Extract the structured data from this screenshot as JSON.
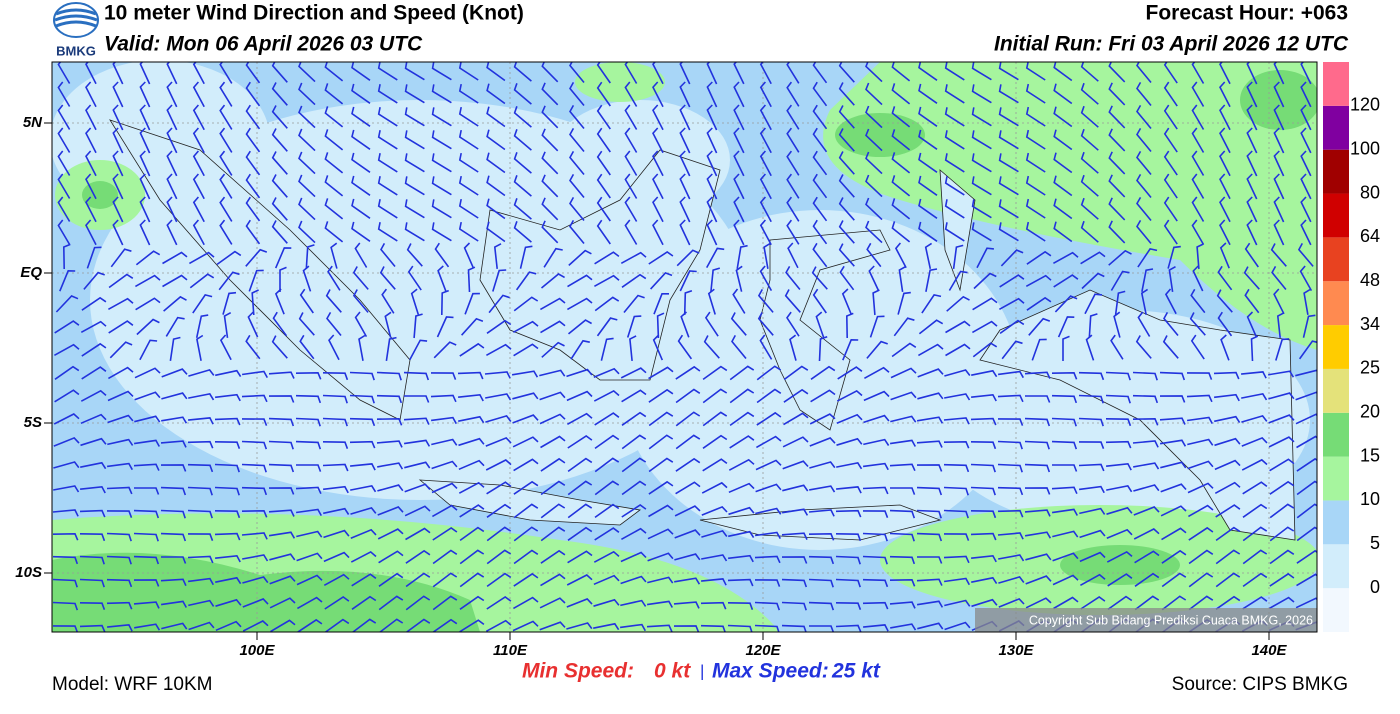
{
  "header": {
    "title": "10 meter Wind Direction and Speed (Knot)",
    "valid": "Valid: Mon 06 April 2026 03 UTC",
    "forecast_hour": "Forecast Hour: +063",
    "initial_run": "Initial Run: Fri 03 April 2026 12 UTC",
    "logo": "BMKG"
  },
  "map": {
    "lat_labels": [
      "5N",
      "EQ",
      "5S",
      "10S"
    ],
    "lon_labels": [
      "100E",
      "110E",
      "120E",
      "130E",
      "140E"
    ],
    "copyright": "Copyright Sub Bidang Prediksi Cuaca BMKG, 2026"
  },
  "colorbar": {
    "labels": [
      "0",
      "5",
      "10",
      "15",
      "20",
      "25",
      "34",
      "48",
      "64",
      "80",
      "100",
      "120"
    ],
    "colors": [
      "#f2f8fe",
      "#d2edfb",
      "#a8d6f7",
      "#a6f59e",
      "#76dc76",
      "#e4e27a",
      "#ffcc00",
      "#ff8a50",
      "#e84220",
      "#d00000",
      "#a00000",
      "#8000a0",
      "#ff6a8c"
    ]
  },
  "footer": {
    "min_speed_label": "Min Speed:",
    "min_speed": "0 kt",
    "separator": "|",
    "max_speed_label": "Max Speed:",
    "max_speed": "25 kt",
    "model": "Model: WRF 10KM",
    "source": "Source: CIPS BMKG"
  }
}
